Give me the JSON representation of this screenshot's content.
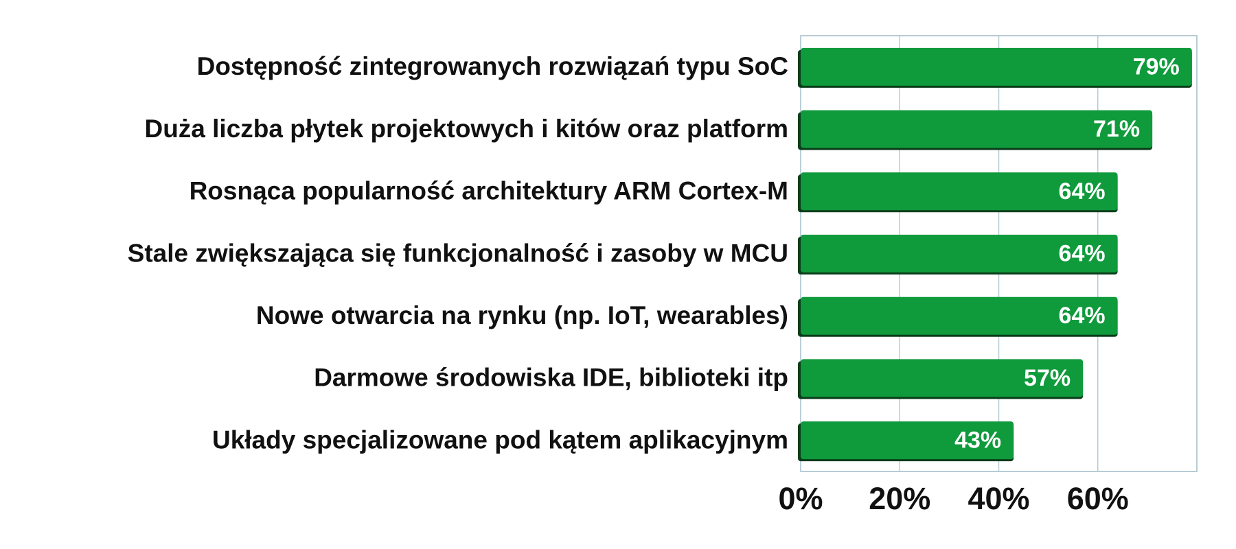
{
  "chart_data": {
    "type": "bar",
    "orientation": "horizontal",
    "categories": [
      "Dostępność zintegrowanych rozwiązań typu SoC",
      "Duża liczba płytek projektowych i kitów oraz platform",
      "Rosnąca popularność architektury ARM Cortex-M",
      "Stale zwiększająca się funkcjonalność i zasoby w MCU",
      "Nowe otwarcia na rynku (np. IoT, wearables)",
      "Darmowe środowiska IDE, biblioteki itp",
      "Układy specjalizowane pod kątem aplikacyjnym"
    ],
    "values": [
      79,
      71,
      64,
      64,
      64,
      57,
      43
    ],
    "value_labels": [
      "79%",
      "71%",
      "64%",
      "64%",
      "64%",
      "57%",
      "43%"
    ],
    "color": "#0f9a3c",
    "xlim": [
      0,
      80
    ],
    "xticks": [
      {
        "value": 0,
        "label": "0%"
      },
      {
        "value": 20,
        "label": "20%"
      },
      {
        "value": 40,
        "label": "40%"
      },
      {
        "value": 60,
        "label": "60%"
      }
    ],
    "grid": true
  }
}
